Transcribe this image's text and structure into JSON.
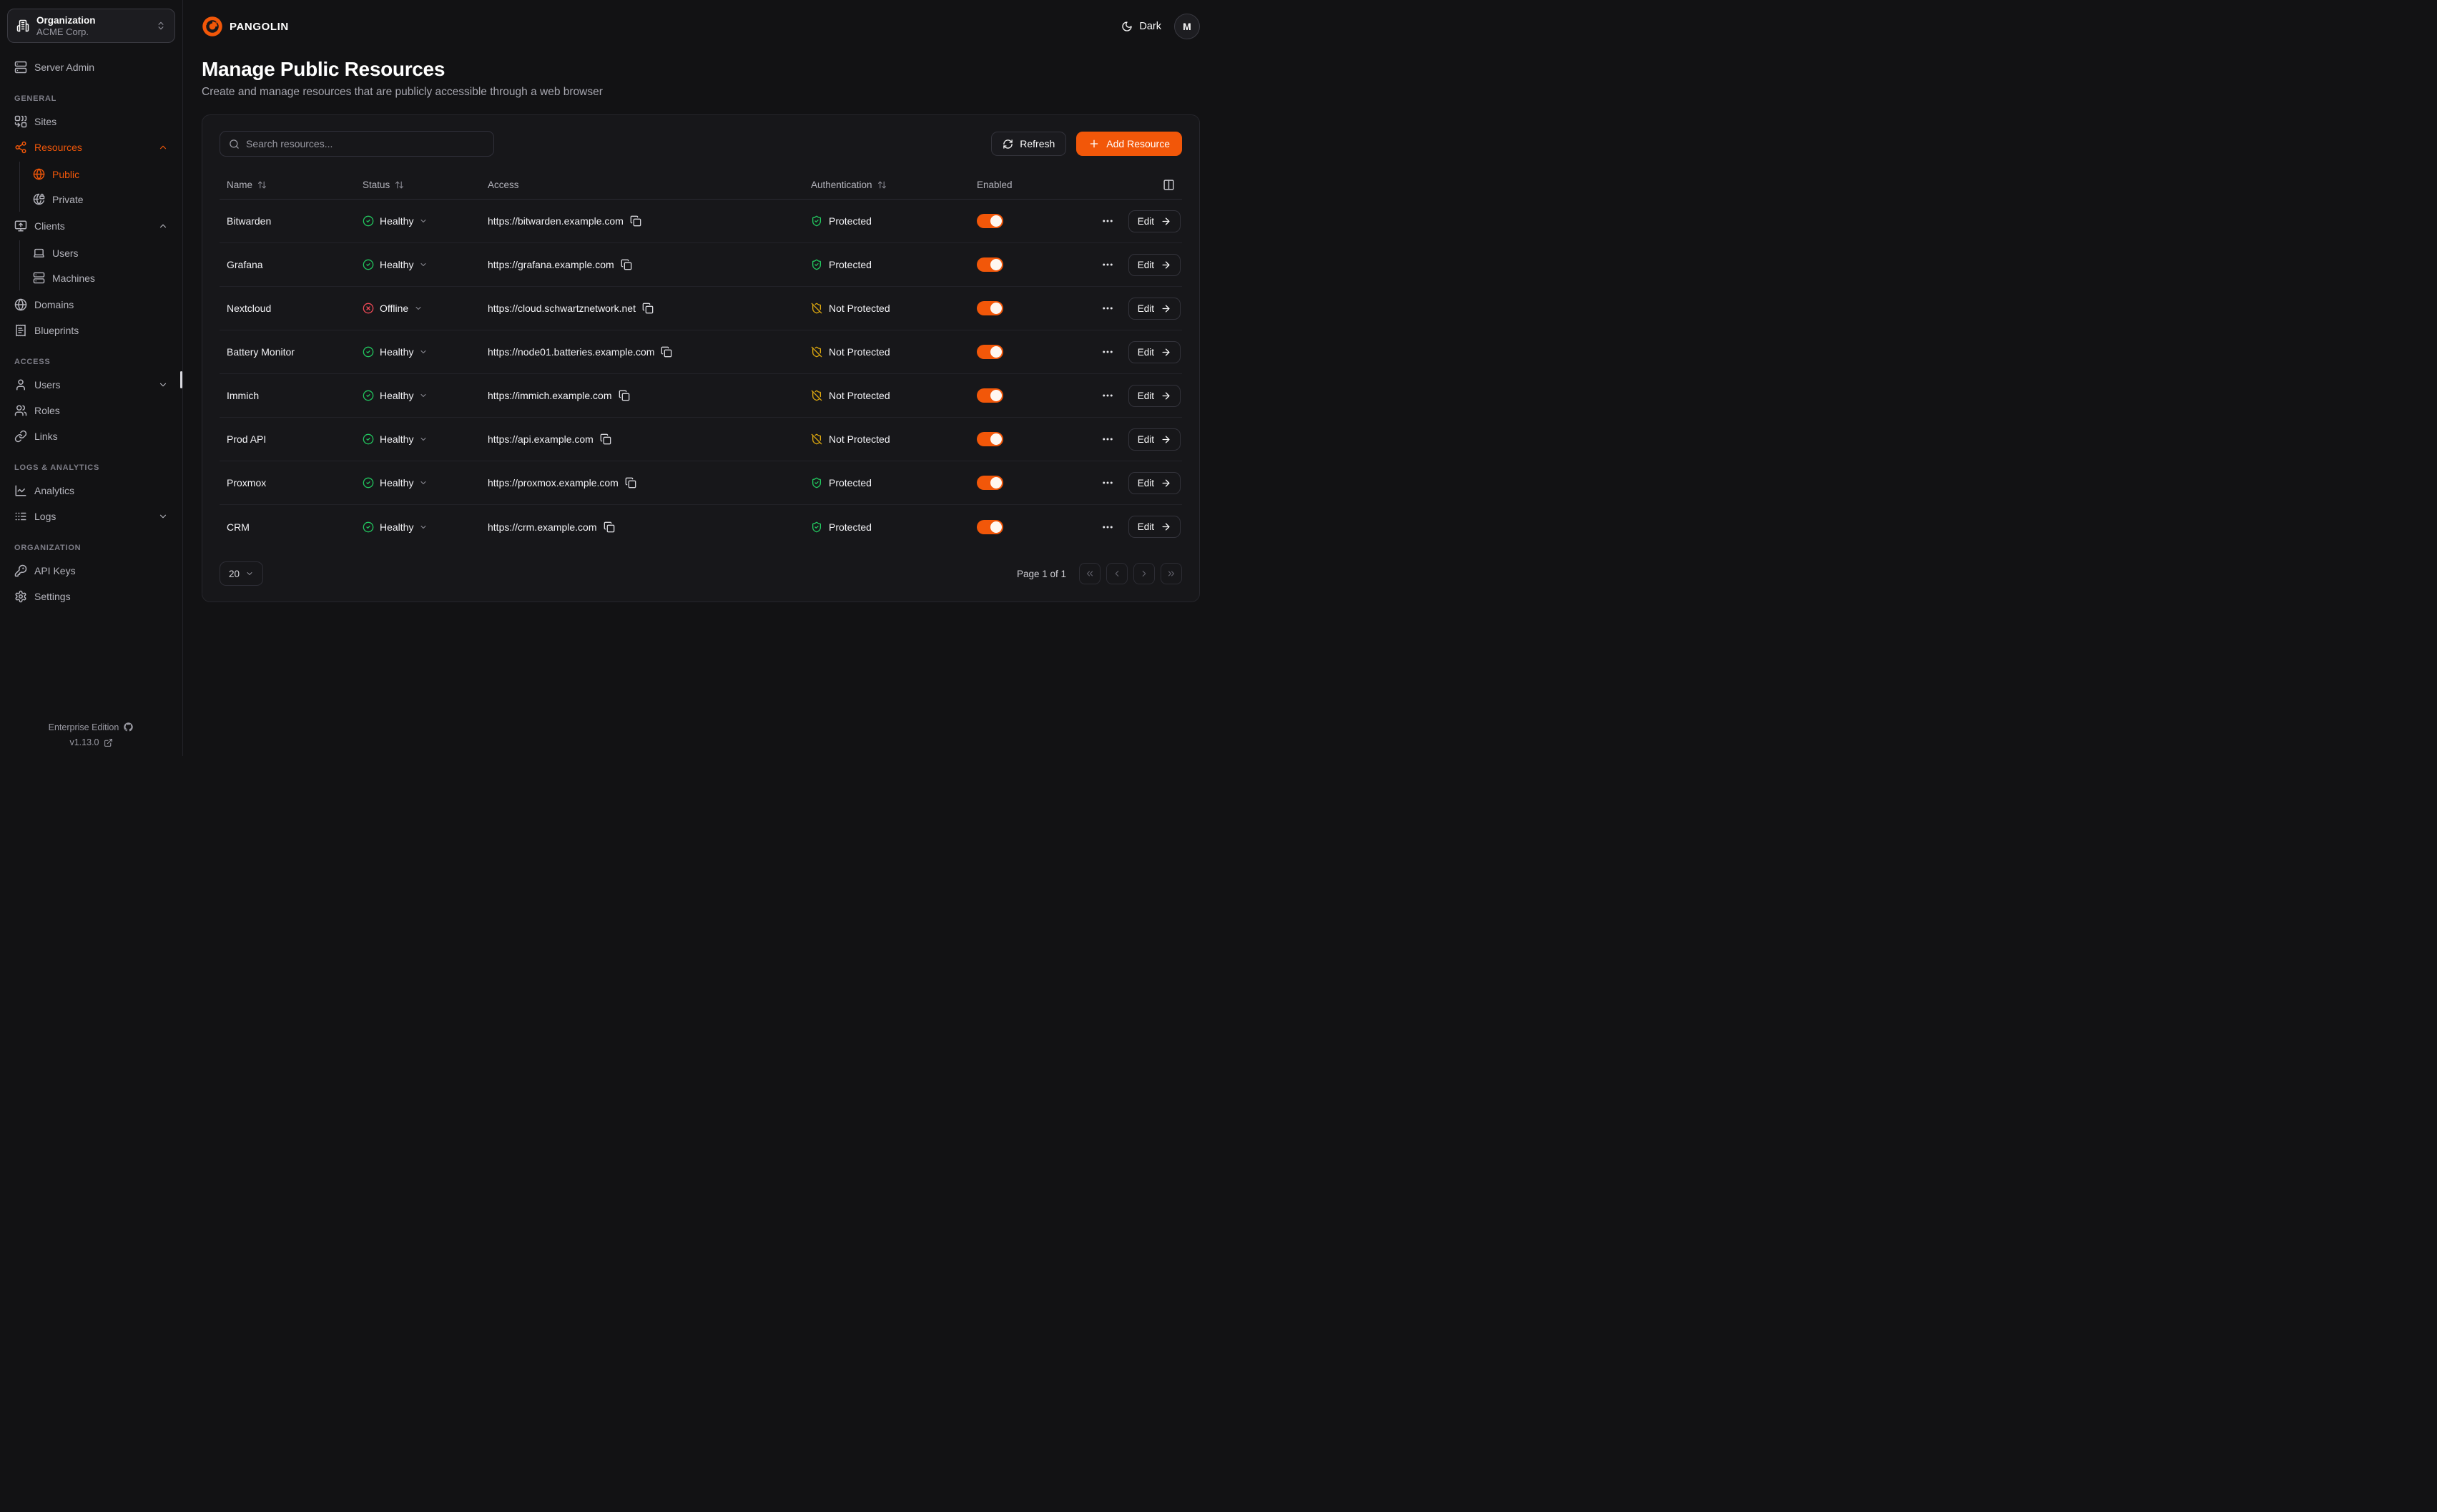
{
  "org_switcher": {
    "label": "Organization",
    "value": "ACME Corp."
  },
  "brand": {
    "name": "PANGOLIN"
  },
  "topbar": {
    "theme_label": "Dark",
    "avatar_initial": "M"
  },
  "page": {
    "title": "Manage Public Resources",
    "subtitle": "Create and manage resources that are publicly accessible through a web browser"
  },
  "toolbar": {
    "search_placeholder": "Search resources...",
    "refresh_label": "Refresh",
    "add_label": "Add Resource"
  },
  "sidebar": {
    "standalone": [
      {
        "icon": "server",
        "label": "Server Admin"
      }
    ],
    "sections": [
      {
        "heading": "GENERAL",
        "items": [
          {
            "icon": "combine",
            "label": "Sites"
          },
          {
            "icon": "share",
            "label": "Resources",
            "active": true,
            "chevron": "up",
            "children": [
              {
                "icon": "globe",
                "label": "Public",
                "active": true
              },
              {
                "icon": "globe-lock",
                "label": "Private"
              }
            ]
          },
          {
            "icon": "monitor-up",
            "label": "Clients",
            "chevron": "up",
            "children": [
              {
                "icon": "laptop",
                "label": "Users"
              },
              {
                "icon": "server",
                "label": "Machines"
              }
            ]
          },
          {
            "icon": "globe",
            "label": "Domains"
          },
          {
            "icon": "receipt",
            "label": "Blueprints"
          }
        ]
      },
      {
        "heading": "ACCESS",
        "items": [
          {
            "icon": "user",
            "label": "Users",
            "chevron": "down"
          },
          {
            "icon": "users",
            "label": "Roles"
          },
          {
            "icon": "link",
            "label": "Links"
          }
        ]
      },
      {
        "heading": "LOGS & ANALYTICS",
        "items": [
          {
            "icon": "chart",
            "label": "Analytics"
          },
          {
            "icon": "logs",
            "label": "Logs",
            "chevron": "down"
          }
        ]
      },
      {
        "heading": "ORGANIZATION",
        "items": [
          {
            "icon": "key",
            "label": "API Keys"
          },
          {
            "icon": "gear",
            "label": "Settings"
          }
        ]
      }
    ],
    "footer": {
      "edition": "Enterprise Edition",
      "version": "v1.13.0"
    }
  },
  "table": {
    "columns": [
      {
        "label": "Name",
        "sortable": true
      },
      {
        "label": "Status",
        "sortable": true
      },
      {
        "label": "Access",
        "sortable": false
      },
      {
        "label": "Authentication",
        "sortable": true
      },
      {
        "label": "Enabled",
        "sortable": false
      }
    ],
    "edit_label": "Edit",
    "rows": [
      {
        "name": "Bitwarden",
        "status": "Healthy",
        "url": "https://bitwarden.example.com",
        "auth": "Protected",
        "enabled": true
      },
      {
        "name": "Grafana",
        "status": "Healthy",
        "url": "https://grafana.example.com",
        "auth": "Protected",
        "enabled": true
      },
      {
        "name": "Nextcloud",
        "status": "Offline",
        "url": "https://cloud.schwartznetwork.net",
        "auth": "Not Protected",
        "enabled": true
      },
      {
        "name": "Battery Monitor",
        "status": "Healthy",
        "url": "https://node01.batteries.example.com",
        "auth": "Not Protected",
        "enabled": true
      },
      {
        "name": "Immich",
        "status": "Healthy",
        "url": "https://immich.example.com",
        "auth": "Not Protected",
        "enabled": true
      },
      {
        "name": "Prod API",
        "status": "Healthy",
        "url": "https://api.example.com",
        "auth": "Not Protected",
        "enabled": true
      },
      {
        "name": "Proxmox",
        "status": "Healthy",
        "url": "https://proxmox.example.com",
        "auth": "Protected",
        "enabled": true
      },
      {
        "name": "CRM",
        "status": "Healthy",
        "url": "https://crm.example.com",
        "auth": "Protected",
        "enabled": true
      }
    ]
  },
  "pagination": {
    "page_size": "20",
    "summary": "Page 1 of 1"
  },
  "colors": {
    "accent": "#f25709",
    "healthy": "#22c55e",
    "offline": "#ee4956",
    "protected": "#22c55e",
    "not_protected": "#d9a50f"
  }
}
